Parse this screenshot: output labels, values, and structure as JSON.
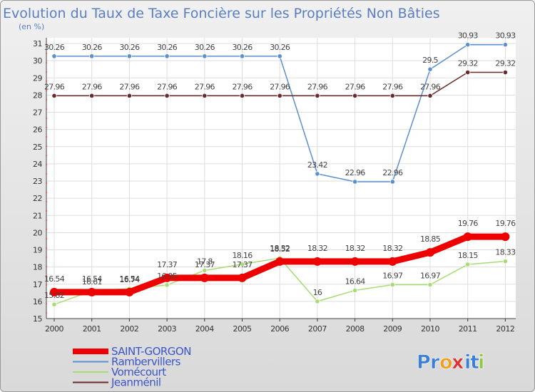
{
  "chart_data": {
    "type": "line",
    "title": "Evolution du Taux de Taxe Foncière sur les Propriétés Non Bâties",
    "subtitle": "(en %)",
    "categories": [
      "2000",
      "2001",
      "2002",
      "2003",
      "2004",
      "2005",
      "2006",
      "2007",
      "2008",
      "2009",
      "2010",
      "2011",
      "2012"
    ],
    "ylim": [
      15,
      31
    ],
    "yticks": [
      15,
      16,
      17,
      18,
      19,
      20,
      21,
      22,
      23,
      24,
      25,
      26,
      27,
      28,
      29,
      30,
      31
    ],
    "grid": true,
    "legend_position": "bottom-left",
    "series": [
      {
        "name": "SAINT-GORGON",
        "color": "#ee0000",
        "values": [
          16.54,
          16.54,
          16.54,
          17.37,
          17.37,
          17.37,
          18.32,
          18.32,
          18.32,
          18.32,
          18.85,
          19.76,
          19.76
        ]
      },
      {
        "name": "Rambervillers",
        "color": "#5b8fd0",
        "values": [
          30.26,
          30.26,
          30.26,
          30.26,
          30.26,
          30.26,
          30.26,
          23.42,
          22.96,
          22.96,
          29.5,
          30.93,
          30.93
        ]
      },
      {
        "name": "Vomécourt",
        "color": "#a7dc72",
        "values": [
          15.82,
          16.61,
          16.74,
          16.95,
          17.8,
          18.16,
          18.52,
          16,
          16.64,
          16.97,
          16.97,
          18.15,
          18.33
        ]
      },
      {
        "name": "Jeanménil",
        "color": "#6b2a2a",
        "values": [
          27.96,
          27.96,
          27.96,
          27.96,
          27.96,
          27.96,
          27.96,
          27.96,
          27.96,
          27.96,
          27.96,
          29.32,
          29.32
        ]
      }
    ]
  },
  "logo": {
    "text": "Proxiti",
    "letters": [
      "P",
      "r",
      "o",
      "x",
      "i",
      "t",
      "i"
    ],
    "colors": [
      "#3d7fd6",
      "#3d7fd6",
      "#f0a020",
      "#e03030",
      "#3d7fd6",
      "#3d7fd6",
      "#8fc83e"
    ]
  }
}
